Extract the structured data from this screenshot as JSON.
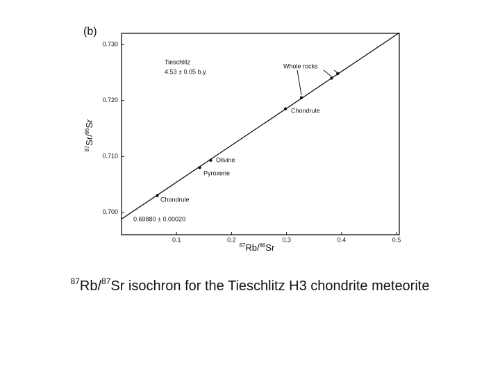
{
  "chart_data": {
    "type": "scatter",
    "title": "(b)",
    "x_label": [
      {
        "text": "87",
        "sup": true
      },
      {
        "text": "Rb/"
      },
      {
        "text": "86",
        "sup": true
      },
      {
        "text": "Sr"
      }
    ],
    "y_label": [
      {
        "text": "87",
        "sup": true
      },
      {
        "text": "Sr/"
      },
      {
        "text": "86",
        "sup": true
      },
      {
        "text": "Sr"
      }
    ],
    "xlim": [
      0,
      0.505
    ],
    "ylim": [
      0.696,
      0.732
    ],
    "xticks": [
      0.1,
      0.2,
      0.3,
      0.4,
      0.5
    ],
    "yticks": [
      {
        "value": 0.7,
        "label": "0.700"
      },
      {
        "value": 0.71,
        "label": "0.710"
      },
      {
        "value": 0.72,
        "label": "0.720"
      },
      {
        "value": 0.73,
        "label": "0.730"
      }
    ],
    "series": [
      {
        "name": "Tieschlitz",
        "color": "#111111",
        "x": [
          0.065,
          0.142,
          0.162,
          0.298,
          0.327,
          0.382,
          0.393
        ],
        "values": [
          0.703,
          0.708,
          0.7093,
          0.7185,
          0.7205,
          0.724,
          0.7248
        ]
      }
    ],
    "fit_line": {
      "color": "#111111",
      "x": [
        0,
        0.505
      ],
      "values": [
        0.6988,
        0.7321
      ]
    },
    "annotations": [
      "Tieschlitz",
      "4.53 ± 0.05 b.y.",
      "Whole rocks",
      "Chondrule",
      "Olivine",
      "Pyroxene",
      "Chondrule",
      "0.69880 ± 0.00020"
    ],
    "caption": [
      {
        "text": "87",
        "sup": true
      },
      {
        "text": "Rb/"
      },
      {
        "text": "87",
        "sup": true
      },
      {
        "text": "Sr isochron for the Tieschlitz H3 chondrite meteorite"
      }
    ]
  }
}
